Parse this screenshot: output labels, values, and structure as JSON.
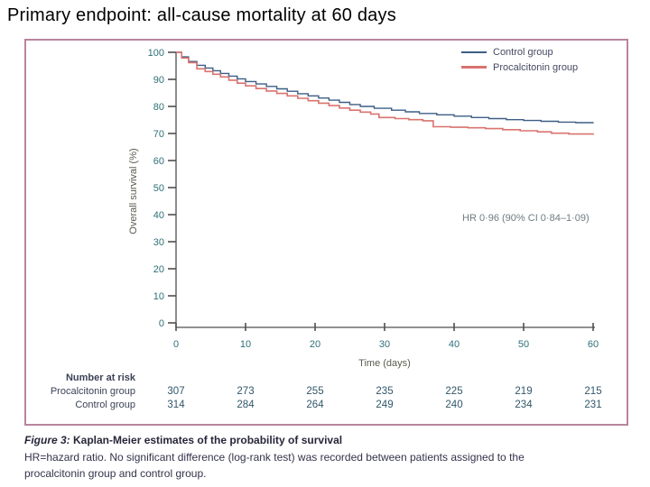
{
  "page": {
    "title": "Primary endpoint: all-cause mortality at 60 days"
  },
  "chart_data": {
    "type": "line",
    "subtype": "kaplan-meier-step",
    "xlabel": "Time (days)",
    "ylabel": "Overall survival (%)",
    "xlim": [
      0,
      60
    ],
    "ylim": [
      0,
      100
    ],
    "x_ticks": [
      0,
      10,
      20,
      30,
      40,
      50,
      60
    ],
    "y_ticks": [
      0,
      10,
      20,
      30,
      40,
      50,
      60,
      70,
      80,
      90,
      100
    ],
    "grid": false,
    "legend_position": "top-right",
    "annotation": "HR 0·96 (90% CI 0·84–1·09)",
    "series": [
      {
        "name": "Control group",
        "color": "#3c5e85",
        "width": 1.4,
        "legend_thickness": 2,
        "points": [
          [
            0,
            100
          ],
          [
            0.8,
            98.3
          ],
          [
            1.8,
            96.6
          ],
          [
            3,
            95.2
          ],
          [
            4.2,
            94.2
          ],
          [
            5.3,
            93.2
          ],
          [
            6.4,
            92.2
          ],
          [
            7.6,
            91.2
          ],
          [
            8.8,
            90.2
          ],
          [
            10,
            89.2
          ],
          [
            11.5,
            88.3
          ],
          [
            13,
            87.4
          ],
          [
            14.5,
            86.5
          ],
          [
            16,
            85.6
          ],
          [
            17.5,
            84.7
          ],
          [
            19,
            83.9
          ],
          [
            20.5,
            83.1
          ],
          [
            22,
            82.3
          ],
          [
            23.5,
            81.5
          ],
          [
            25,
            80.7
          ],
          [
            26.5,
            80.0
          ],
          [
            28.5,
            79.3
          ],
          [
            31,
            78.6
          ],
          [
            33,
            78.0
          ],
          [
            35,
            77.4
          ],
          [
            37.5,
            76.9
          ],
          [
            40,
            76.4
          ],
          [
            42.5,
            75.9
          ],
          [
            45,
            75.5
          ],
          [
            47.5,
            75.1
          ],
          [
            50,
            74.8
          ],
          [
            52.5,
            74.5
          ],
          [
            55,
            74.2
          ],
          [
            57.5,
            74.0
          ],
          [
            60,
            73.8
          ]
        ]
      },
      {
        "name": "Procalcitonin group",
        "color": "#d9736f",
        "width": 1.6,
        "legend_thickness": 3.5,
        "points": [
          [
            0,
            100
          ],
          [
            0.8,
            97.9
          ],
          [
            1.8,
            96.2
          ],
          [
            3,
            93.9
          ],
          [
            4.2,
            92.9
          ],
          [
            5.3,
            91.9
          ],
          [
            6.4,
            90.9
          ],
          [
            7.6,
            89.7
          ],
          [
            8.8,
            88.6
          ],
          [
            10,
            87.6
          ],
          [
            11.5,
            86.6
          ],
          [
            13,
            85.7
          ],
          [
            14.5,
            84.8
          ],
          [
            16,
            83.9
          ],
          [
            17.5,
            83.0
          ],
          [
            19,
            82.1
          ],
          [
            20.5,
            81.2
          ],
          [
            22,
            80.3
          ],
          [
            23.5,
            79.4
          ],
          [
            25,
            78.6
          ],
          [
            26.5,
            77.9
          ],
          [
            28,
            77.2
          ],
          [
            29.2,
            75.9
          ],
          [
            31.5,
            75.5
          ],
          [
            33.5,
            75.1
          ],
          [
            35.5,
            74.7
          ],
          [
            37,
            72.5
          ],
          [
            39.5,
            72.3
          ],
          [
            42,
            72.1
          ],
          [
            44.5,
            71.8
          ],
          [
            47,
            71.4
          ],
          [
            49.5,
            71.0
          ],
          [
            52,
            70.6
          ],
          [
            54,
            70.1
          ],
          [
            56.5,
            69.8
          ],
          [
            60,
            69.5
          ]
        ]
      }
    ],
    "number_at_risk": {
      "header": "Number at risk",
      "columns": [
        0,
        10,
        20,
        30,
        40,
        50,
        60
      ],
      "rows": [
        {
          "label": "Procalcitonin group",
          "values": [
            307,
            273,
            255,
            235,
            225,
            219,
            215
          ]
        },
        {
          "label": "Control group",
          "values": [
            314,
            284,
            264,
            249,
            240,
            234,
            231
          ]
        }
      ]
    }
  },
  "caption": {
    "figure_label": "Figure 3:",
    "figure_title": " Kaplan-Meier estimates of the probability of survival",
    "notes": "HR=hazard ratio. No significant difference (log-rank test) was recorded between patients assigned to the procalcitonin group and control group."
  },
  "colors": {
    "box_border": "#b9849e",
    "axis": "#4f4f4f",
    "tick_labels": "#2f7078",
    "axis_titles": "#5b5b4f",
    "annotation_text": "#6e7d82",
    "risk_text": "#3c4257",
    "risk_numbers": "#31566b",
    "control_line": "#3c5e85",
    "procalcitonin_line": "#d9736f",
    "title_text": "#000000"
  }
}
